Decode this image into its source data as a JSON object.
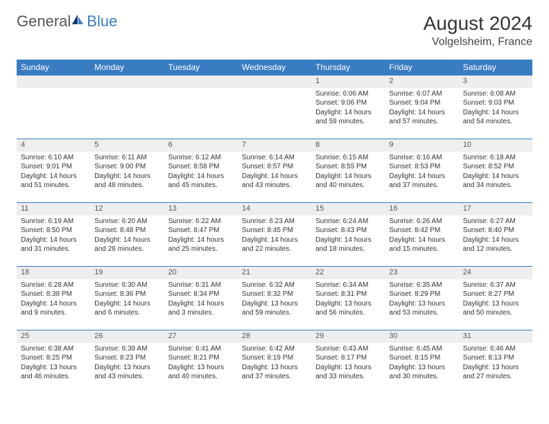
{
  "brand": {
    "general": "General",
    "blue": "Blue"
  },
  "title": "August 2024",
  "location": "Volgelsheim, France",
  "colors": {
    "header_bg": "#3a7cc2",
    "header_text": "#ffffff",
    "daynum_bg": "#eeeeee",
    "border": "#3a7cc2",
    "body_text": "#333333"
  },
  "weekdays": [
    "Sunday",
    "Monday",
    "Tuesday",
    "Wednesday",
    "Thursday",
    "Friday",
    "Saturday"
  ],
  "weeks": [
    [
      null,
      null,
      null,
      null,
      {
        "n": "1",
        "sr": "Sunrise: 6:06 AM",
        "ss": "Sunset: 9:06 PM",
        "dl": "Daylight: 14 hours and 59 minutes."
      },
      {
        "n": "2",
        "sr": "Sunrise: 6:07 AM",
        "ss": "Sunset: 9:04 PM",
        "dl": "Daylight: 14 hours and 57 minutes."
      },
      {
        "n": "3",
        "sr": "Sunrise: 6:08 AM",
        "ss": "Sunset: 9:03 PM",
        "dl": "Daylight: 14 hours and 54 minutes."
      }
    ],
    [
      {
        "n": "4",
        "sr": "Sunrise: 6:10 AM",
        "ss": "Sunset: 9:01 PM",
        "dl": "Daylight: 14 hours and 51 minutes."
      },
      {
        "n": "5",
        "sr": "Sunrise: 6:11 AM",
        "ss": "Sunset: 9:00 PM",
        "dl": "Daylight: 14 hours and 48 minutes."
      },
      {
        "n": "6",
        "sr": "Sunrise: 6:12 AM",
        "ss": "Sunset: 8:58 PM",
        "dl": "Daylight: 14 hours and 45 minutes."
      },
      {
        "n": "7",
        "sr": "Sunrise: 6:14 AM",
        "ss": "Sunset: 8:57 PM",
        "dl": "Daylight: 14 hours and 43 minutes."
      },
      {
        "n": "8",
        "sr": "Sunrise: 6:15 AM",
        "ss": "Sunset: 8:55 PM",
        "dl": "Daylight: 14 hours and 40 minutes."
      },
      {
        "n": "9",
        "sr": "Sunrise: 6:16 AM",
        "ss": "Sunset: 8:53 PM",
        "dl": "Daylight: 14 hours and 37 minutes."
      },
      {
        "n": "10",
        "sr": "Sunrise: 6:18 AM",
        "ss": "Sunset: 8:52 PM",
        "dl": "Daylight: 14 hours and 34 minutes."
      }
    ],
    [
      {
        "n": "11",
        "sr": "Sunrise: 6:19 AM",
        "ss": "Sunset: 8:50 PM",
        "dl": "Daylight: 14 hours and 31 minutes."
      },
      {
        "n": "12",
        "sr": "Sunrise: 6:20 AM",
        "ss": "Sunset: 8:48 PM",
        "dl": "Daylight: 14 hours and 28 minutes."
      },
      {
        "n": "13",
        "sr": "Sunrise: 6:22 AM",
        "ss": "Sunset: 8:47 PM",
        "dl": "Daylight: 14 hours and 25 minutes."
      },
      {
        "n": "14",
        "sr": "Sunrise: 6:23 AM",
        "ss": "Sunset: 8:45 PM",
        "dl": "Daylight: 14 hours and 22 minutes."
      },
      {
        "n": "15",
        "sr": "Sunrise: 6:24 AM",
        "ss": "Sunset: 8:43 PM",
        "dl": "Daylight: 14 hours and 18 minutes."
      },
      {
        "n": "16",
        "sr": "Sunrise: 6:26 AM",
        "ss": "Sunset: 8:42 PM",
        "dl": "Daylight: 14 hours and 15 minutes."
      },
      {
        "n": "17",
        "sr": "Sunrise: 6:27 AM",
        "ss": "Sunset: 8:40 PM",
        "dl": "Daylight: 14 hours and 12 minutes."
      }
    ],
    [
      {
        "n": "18",
        "sr": "Sunrise: 6:28 AM",
        "ss": "Sunset: 8:38 PM",
        "dl": "Daylight: 14 hours and 9 minutes."
      },
      {
        "n": "19",
        "sr": "Sunrise: 6:30 AM",
        "ss": "Sunset: 8:36 PM",
        "dl": "Daylight: 14 hours and 6 minutes."
      },
      {
        "n": "20",
        "sr": "Sunrise: 6:31 AM",
        "ss": "Sunset: 8:34 PM",
        "dl": "Daylight: 14 hours and 3 minutes."
      },
      {
        "n": "21",
        "sr": "Sunrise: 6:32 AM",
        "ss": "Sunset: 8:32 PM",
        "dl": "Daylight: 13 hours and 59 minutes."
      },
      {
        "n": "22",
        "sr": "Sunrise: 6:34 AM",
        "ss": "Sunset: 8:31 PM",
        "dl": "Daylight: 13 hours and 56 minutes."
      },
      {
        "n": "23",
        "sr": "Sunrise: 6:35 AM",
        "ss": "Sunset: 8:29 PM",
        "dl": "Daylight: 13 hours and 53 minutes."
      },
      {
        "n": "24",
        "sr": "Sunrise: 6:37 AM",
        "ss": "Sunset: 8:27 PM",
        "dl": "Daylight: 13 hours and 50 minutes."
      }
    ],
    [
      {
        "n": "25",
        "sr": "Sunrise: 6:38 AM",
        "ss": "Sunset: 8:25 PM",
        "dl": "Daylight: 13 hours and 46 minutes."
      },
      {
        "n": "26",
        "sr": "Sunrise: 6:39 AM",
        "ss": "Sunset: 8:23 PM",
        "dl": "Daylight: 13 hours and 43 minutes."
      },
      {
        "n": "27",
        "sr": "Sunrise: 6:41 AM",
        "ss": "Sunset: 8:21 PM",
        "dl": "Daylight: 13 hours and 40 minutes."
      },
      {
        "n": "28",
        "sr": "Sunrise: 6:42 AM",
        "ss": "Sunset: 8:19 PM",
        "dl": "Daylight: 13 hours and 37 minutes."
      },
      {
        "n": "29",
        "sr": "Sunrise: 6:43 AM",
        "ss": "Sunset: 8:17 PM",
        "dl": "Daylight: 13 hours and 33 minutes."
      },
      {
        "n": "30",
        "sr": "Sunrise: 6:45 AM",
        "ss": "Sunset: 8:15 PM",
        "dl": "Daylight: 13 hours and 30 minutes."
      },
      {
        "n": "31",
        "sr": "Sunrise: 6:46 AM",
        "ss": "Sunset: 8:13 PM",
        "dl": "Daylight: 13 hours and 27 minutes."
      }
    ]
  ]
}
